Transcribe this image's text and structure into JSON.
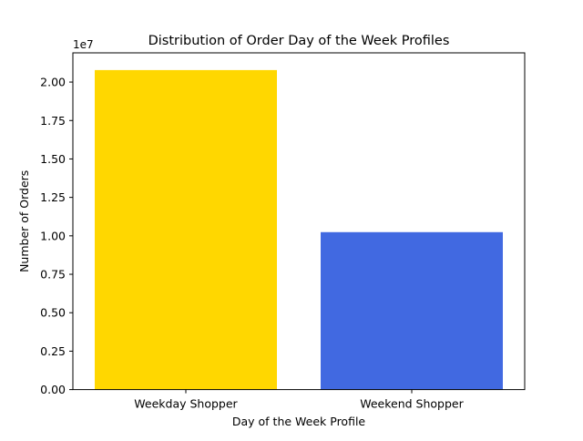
{
  "chart_data": {
    "type": "bar",
    "title": "Distribution of Order Day of the Week Profiles",
    "xlabel": "Day of the Week Profile",
    "ylabel": "Number of Orders",
    "categories": [
      "Weekday Shopper",
      "Weekend Shopper"
    ],
    "values": [
      20780000,
      10240000
    ],
    "colors": [
      "#FFD700",
      "#4169E1"
    ],
    "ylim": [
      0,
      21900000
    ],
    "yticks": [
      0,
      2500000,
      5000000,
      7500000,
      10000000,
      12500000,
      15000000,
      17500000,
      20000000
    ],
    "ytick_labels": [
      "0.00",
      "0.25",
      "0.50",
      "0.75",
      "1.00",
      "1.25",
      "1.50",
      "1.75",
      "2.00"
    ],
    "y_offset_label": "1e7",
    "grid": false,
    "legend": false
  }
}
